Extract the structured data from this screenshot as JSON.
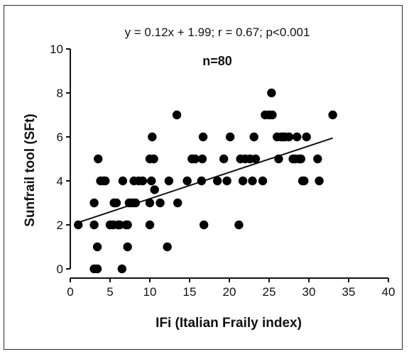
{
  "chart_data": {
    "type": "scatter",
    "title": "",
    "xlabel": "IFi (Italian Fraily index)",
    "ylabel": "Sunfrail tool (SFt)",
    "xlim": [
      0,
      40
    ],
    "ylim": [
      0,
      10
    ],
    "xticks": [
      0,
      5,
      10,
      15,
      20,
      25,
      30,
      35,
      40
    ],
    "yticks": [
      0,
      2,
      4,
      6,
      8,
      10
    ],
    "grid": false,
    "annotations": {
      "equation": "y = 0.12x + 1.99; r = 0.67; p<0.001",
      "n": "n=80"
    },
    "regression": {
      "slope": 0.12,
      "intercept": 1.99,
      "x_range": [
        1,
        33
      ]
    },
    "points": [
      [
        1,
        2
      ],
      [
        3,
        3
      ],
      [
        3,
        2
      ],
      [
        3,
        0
      ],
      [
        3.4,
        0
      ],
      [
        3.5,
        5
      ],
      [
        3.4,
        1
      ],
      [
        3.8,
        4
      ],
      [
        4.2,
        4
      ],
      [
        4.4,
        4
      ],
      [
        5,
        2
      ],
      [
        5.4,
        2
      ],
      [
        5.5,
        3
      ],
      [
        5.8,
        3
      ],
      [
        6,
        2
      ],
      [
        6.2,
        2
      ],
      [
        6.5,
        0
      ],
      [
        6.6,
        4
      ],
      [
        7,
        2
      ],
      [
        7.2,
        2
      ],
      [
        7.2,
        1
      ],
      [
        7.4,
        3
      ],
      [
        7.8,
        3
      ],
      [
        8,
        4
      ],
      [
        8.2,
        3
      ],
      [
        8.6,
        4
      ],
      [
        9.1,
        4
      ],
      [
        10,
        5
      ],
      [
        10,
        2
      ],
      [
        10,
        3
      ],
      [
        10.2,
        4
      ],
      [
        10.3,
        6
      ],
      [
        10.5,
        5
      ],
      [
        10.6,
        3.6
      ],
      [
        11.3,
        3
      ],
      [
        12.2,
        1
      ],
      [
        12.4,
        4
      ],
      [
        13.4,
        7
      ],
      [
        13.5,
        3
      ],
      [
        14.7,
        4
      ],
      [
        15.3,
        5
      ],
      [
        15.7,
        5
      ],
      [
        16.5,
        4
      ],
      [
        16.6,
        5
      ],
      [
        16.7,
        6
      ],
      [
        16.8,
        2
      ],
      [
        18.5,
        4
      ],
      [
        19.3,
        5
      ],
      [
        19.7,
        4
      ],
      [
        20.1,
        6
      ],
      [
        21.2,
        2
      ],
      [
        21.4,
        5
      ],
      [
        21.7,
        4
      ],
      [
        22,
        5
      ],
      [
        22.6,
        5
      ],
      [
        22.9,
        4
      ],
      [
        23.1,
        6
      ],
      [
        23.3,
        5
      ],
      [
        24.2,
        4
      ],
      [
        24.5,
        7
      ],
      [
        25,
        7
      ],
      [
        25.3,
        8
      ],
      [
        25.4,
        7
      ],
      [
        26,
        6
      ],
      [
        26.2,
        5
      ],
      [
        26.5,
        6
      ],
      [
        27,
        6
      ],
      [
        27.5,
        6
      ],
      [
        28,
        5
      ],
      [
        28.3,
        5
      ],
      [
        28.5,
        6
      ],
      [
        28.8,
        5
      ],
      [
        29,
        5
      ],
      [
        29.2,
        4
      ],
      [
        29.4,
        4
      ],
      [
        29.7,
        6
      ],
      [
        31.1,
        5
      ],
      [
        31.3,
        4
      ],
      [
        33,
        7
      ],
      [
        26.8,
        6
      ]
    ]
  }
}
